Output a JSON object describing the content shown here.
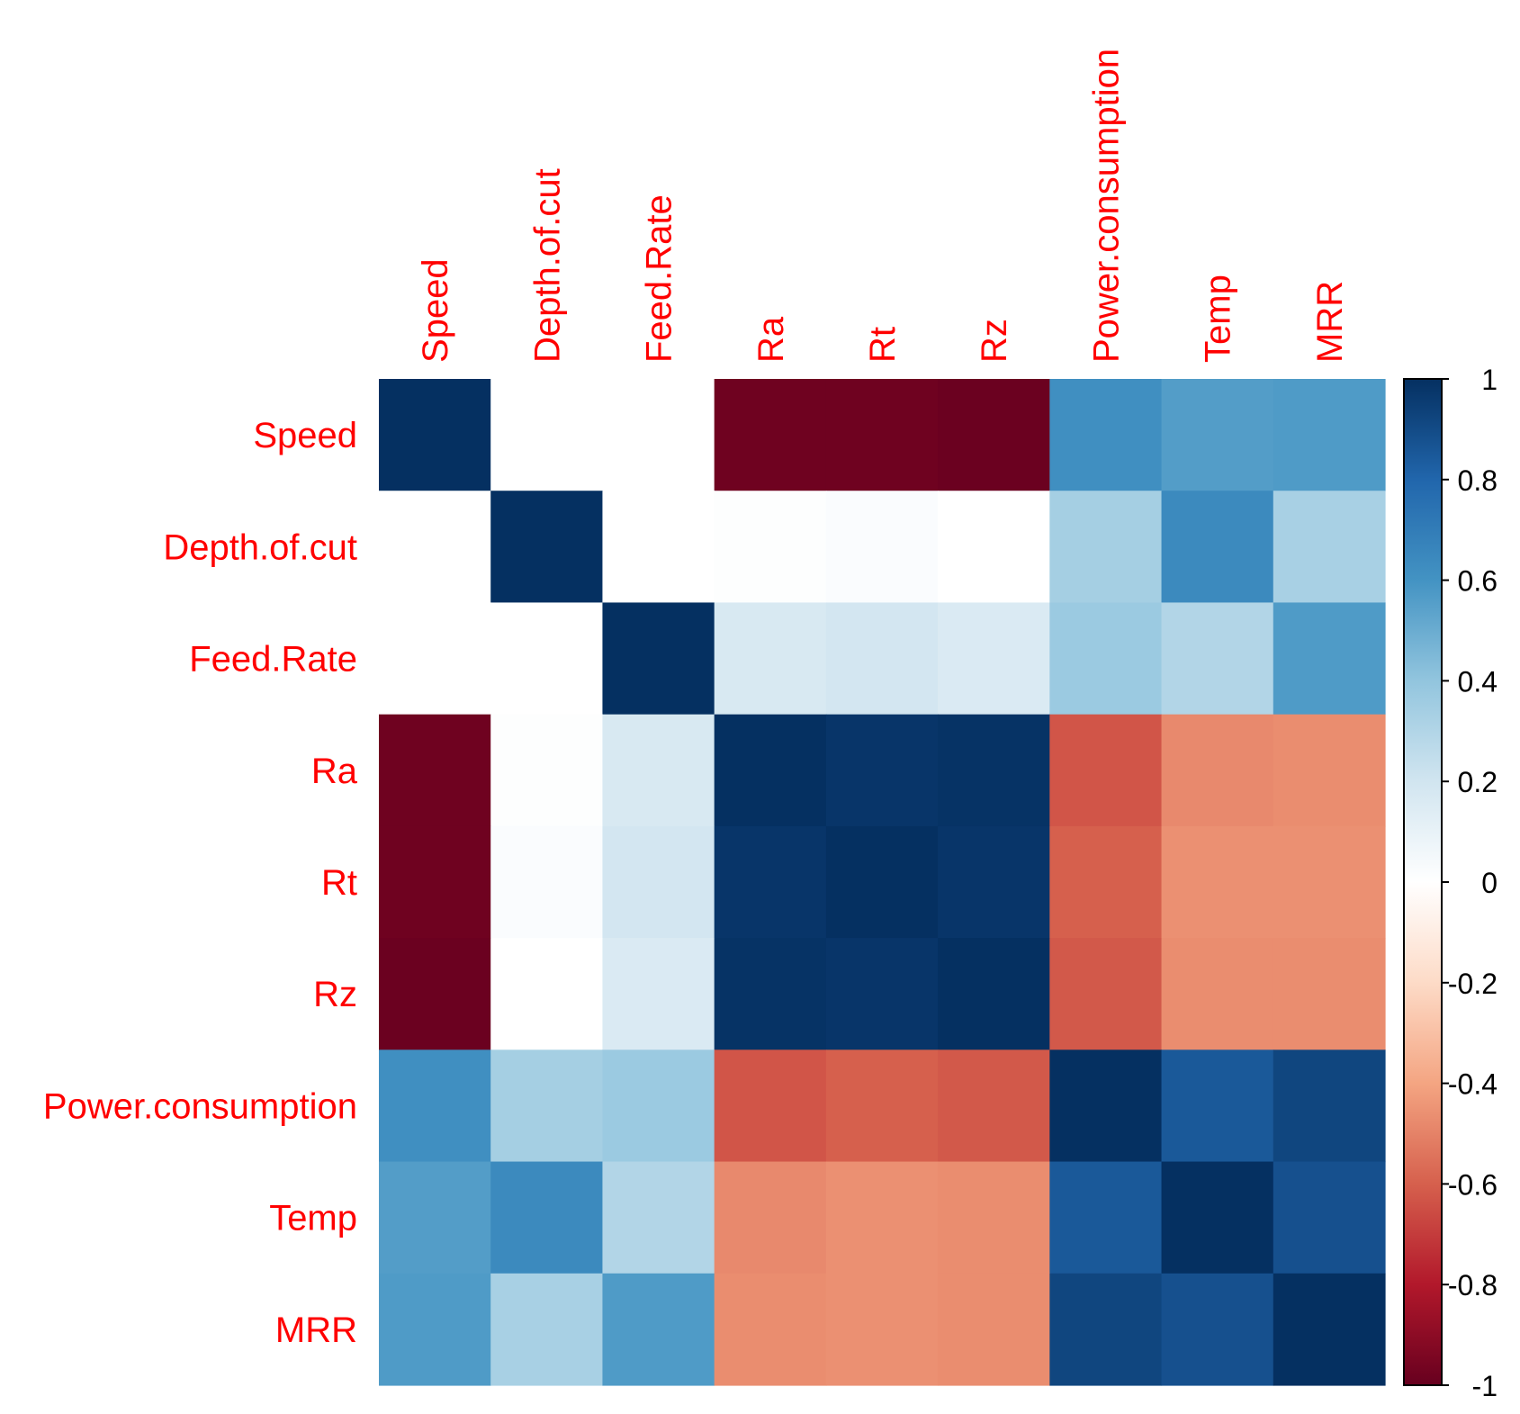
{
  "chart_data": {
    "type": "heatmap",
    "title": "",
    "variables": [
      "Speed",
      "Depth.of.cut",
      "Feed.Rate",
      "Ra",
      "Rt",
      "Rz",
      "Power.consumption",
      "Temp",
      "MRR"
    ],
    "matrix": [
      [
        1.0,
        0.0,
        0.0,
        -0.98,
        -0.98,
        -0.99,
        0.62,
        0.56,
        0.57
      ],
      [
        0.0,
        1.0,
        0.0,
        0.01,
        0.02,
        0.0,
        0.34,
        0.64,
        0.33
      ],
      [
        0.0,
        0.0,
        1.0,
        0.17,
        0.19,
        0.16,
        0.37,
        0.3,
        0.57
      ],
      [
        -0.98,
        0.01,
        0.17,
        1.0,
        0.98,
        0.99,
        -0.63,
        -0.48,
        -0.47
      ],
      [
        -0.98,
        0.02,
        0.19,
        0.98,
        1.0,
        0.98,
        -0.6,
        -0.46,
        -0.46
      ],
      [
        -0.99,
        0.0,
        0.16,
        0.99,
        0.98,
        1.0,
        -0.62,
        -0.47,
        -0.47
      ],
      [
        0.62,
        0.34,
        0.37,
        -0.63,
        -0.6,
        -0.62,
        1.0,
        0.85,
        0.92
      ],
      [
        0.56,
        0.64,
        0.3,
        -0.48,
        -0.46,
        -0.47,
        0.85,
        1.0,
        0.88
      ],
      [
        0.57,
        0.33,
        0.57,
        -0.47,
        -0.46,
        -0.47,
        0.92,
        0.88,
        1.0
      ]
    ],
    "colorbar": {
      "range": [
        -1,
        1
      ],
      "ticks": [
        "1",
        "0.8",
        "0.6",
        "0.4",
        "0.2",
        "0",
        "-0.2",
        "-0.4",
        "-0.6",
        "-0.8",
        "-1"
      ],
      "tick_values": [
        1,
        0.8,
        0.6,
        0.4,
        0.2,
        0,
        -0.2,
        -0.4,
        -0.6,
        -0.8,
        -1
      ],
      "colors": {
        "-1": "#67001F",
        "-0.8": "#B2182B",
        "-0.6": "#D6604D",
        "-0.4": "#F4A582",
        "-0.2": "#FDDBC7",
        "0": "#FFFFFF",
        "0.2": "#D1E5F0",
        "0.4": "#92C5DE",
        "0.6": "#4393C3",
        "0.8": "#2166AC",
        "1": "#053061"
      }
    },
    "label_color": "#FF0000",
    "xlabel": "",
    "ylabel": ""
  }
}
